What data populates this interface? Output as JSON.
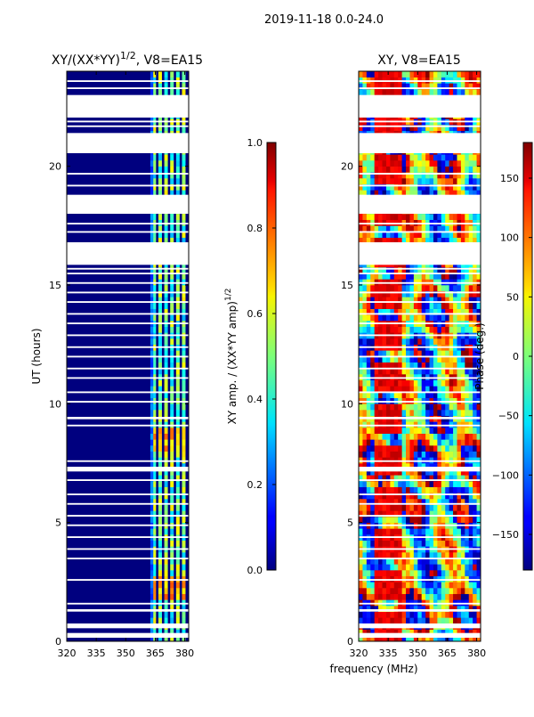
{
  "suptitle": "2019-11-18 0.0-24.0",
  "xlabel": "frequency (MHz)",
  "colors": {
    "background_blue": "#00007f",
    "gap": "#ffffff"
  },
  "chart_data": [
    {
      "id": "amplitude",
      "type": "heatmap",
      "title": "XY/(XX*YY)",
      "title_exp": "1/2",
      "title_rest": ", V8=EA15",
      "ylabel": "UT (hours)",
      "xlim": [
        320,
        382
      ],
      "ylim": [
        0,
        24
      ],
      "xticks": [
        320,
        335,
        350,
        365,
        380
      ],
      "yticks": [
        0,
        5,
        10,
        15,
        20
      ],
      "colorbar": {
        "label": "XY amp. / (XX*YY amp)",
        "label_exp": "1/2",
        "range": [
          0.0,
          1.0
        ],
        "ticks": [
          "0.0",
          "0.2",
          "0.4",
          "0.6",
          "0.8",
          "1.0"
        ],
        "tick_values": [
          0,
          0.2,
          0.4,
          0.6,
          0.8,
          1.0
        ]
      },
      "high_amplitude_channels_MHz": [
        364.5,
        367.5,
        370.5,
        373.5,
        376.5,
        379.5
      ],
      "typical_amplitude_low_band": 0.05,
      "typical_amplitude_high_band": 0.4
    },
    {
      "id": "phase",
      "type": "heatmap",
      "title": "XY, V8=EA15",
      "ylabel": "",
      "xlim": [
        320,
        382
      ],
      "ylim": [
        0,
        24
      ],
      "xticks": [
        320,
        335,
        350,
        365,
        380
      ],
      "yticks": [
        0,
        5,
        10,
        15,
        20
      ],
      "colorbar": {
        "label": "Phase (deg.)",
        "range": [
          -180,
          180
        ],
        "ticks": [
          "−150",
          "−100",
          "−50",
          "0",
          "50",
          "100",
          "150"
        ],
        "tick_values": [
          -150,
          -100,
          -50,
          0,
          50,
          100,
          150
        ]
      }
    }
  ],
  "data_gaps_hours": [
    [
      0.15,
      0.35
    ],
    [
      0.55,
      0.75
    ],
    [
      1.25,
      1.35
    ],
    [
      1.55,
      1.62
    ],
    [
      2.55,
      2.62
    ],
    [
      3.45,
      3.52
    ],
    [
      3.85,
      3.92
    ],
    [
      4.35,
      4.42
    ],
    [
      4.85,
      4.92
    ],
    [
      5.25,
      5.32
    ],
    [
      5.75,
      5.82
    ],
    [
      6.15,
      6.22
    ],
    [
      6.75,
      6.82
    ],
    [
      7.15,
      7.35
    ],
    [
      7.55,
      7.62
    ],
    [
      9.05,
      9.12
    ],
    [
      9.35,
      9.45
    ],
    [
      10.05,
      10.12
    ],
    [
      10.45,
      10.52
    ],
    [
      11.05,
      11.12
    ],
    [
      11.45,
      11.52
    ],
    [
      11.95,
      12.02
    ],
    [
      12.35,
      12.42
    ],
    [
      12.85,
      12.92
    ],
    [
      13.35,
      13.42
    ],
    [
      13.75,
      13.82
    ],
    [
      14.25,
      14.32
    ],
    [
      14.65,
      14.72
    ],
    [
      15.05,
      15.12
    ],
    [
      15.45,
      15.52
    ],
    [
      15.65,
      15.72
    ],
    [
      15.85,
      16.5
    ],
    [
      16.3,
      16.8
    ],
    [
      17.2,
      17.27
    ],
    [
      17.55,
      17.62
    ],
    [
      18.0,
      18.8
    ],
    [
      19.15,
      19.22
    ],
    [
      19.65,
      19.72
    ],
    [
      20.55,
      21.4
    ],
    [
      21.65,
      21.72
    ],
    [
      21.85,
      21.92
    ],
    [
      22.05,
      23.0
    ],
    [
      23.25,
      23.32
    ],
    [
      23.55,
      23.62
    ]
  ]
}
